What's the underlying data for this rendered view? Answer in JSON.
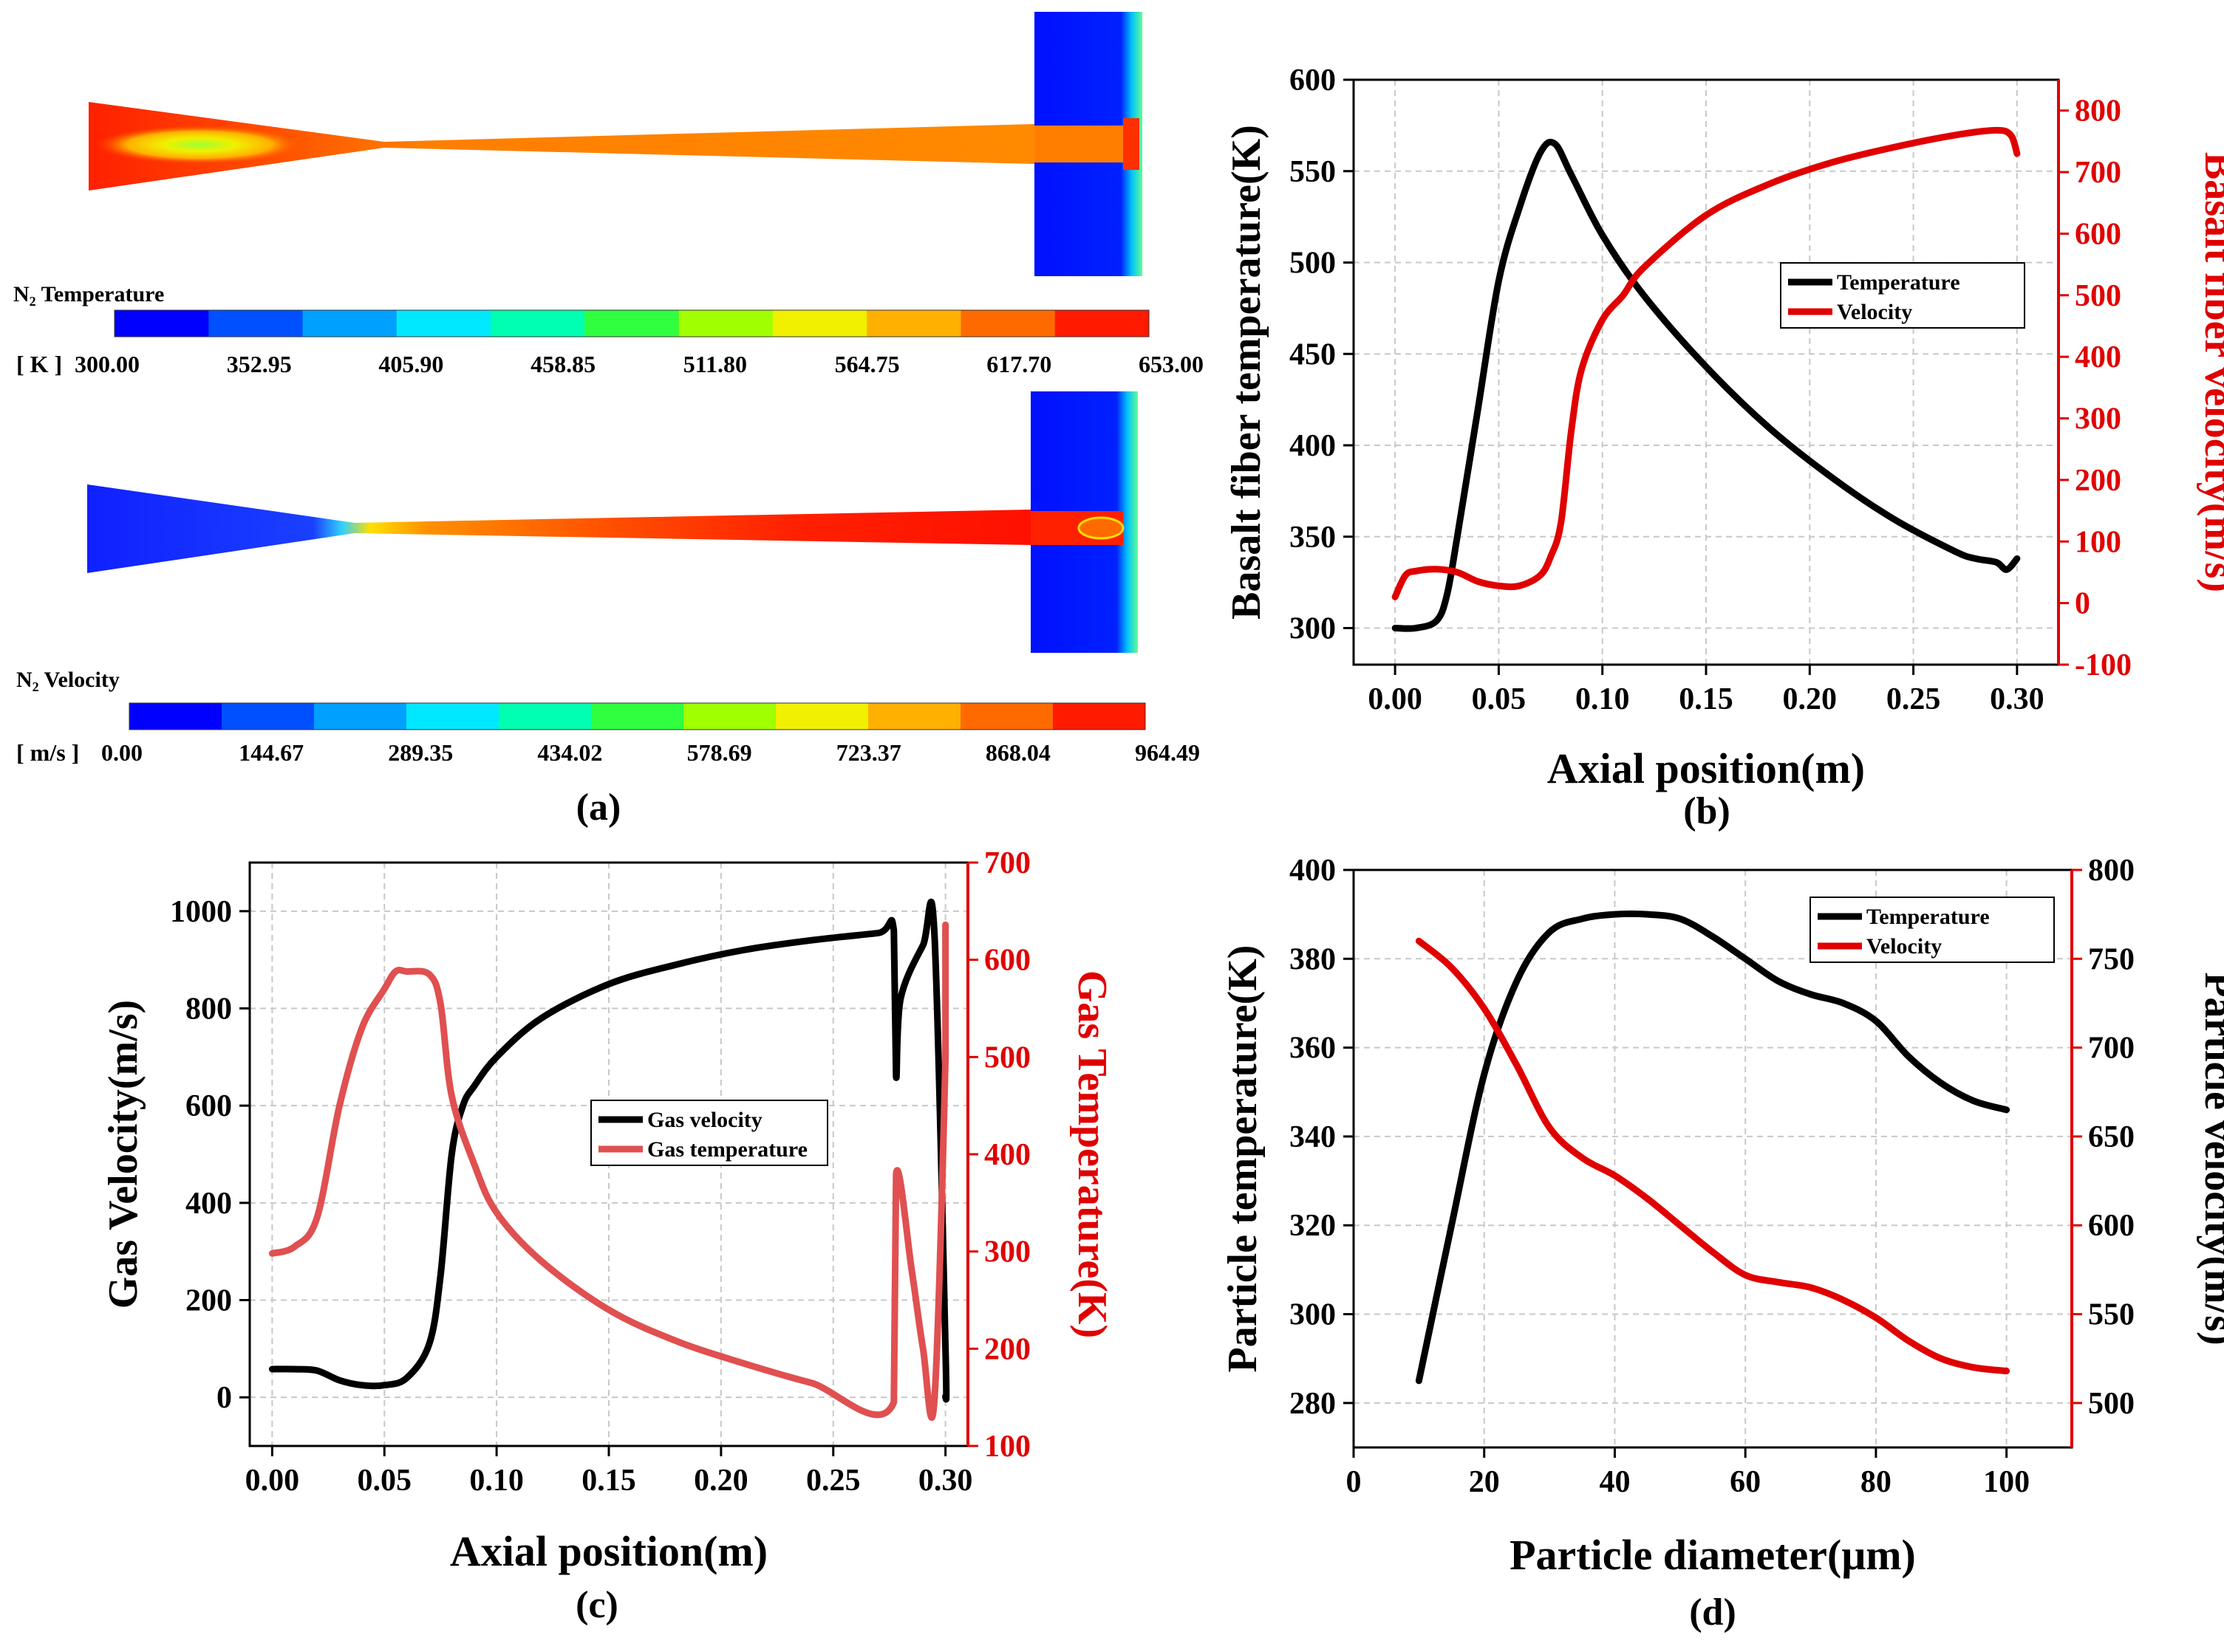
{
  "panel_a": {
    "label": "(a)",
    "temperature": {
      "title": "N₂ Temperature",
      "unit": "[ K ]",
      "ticks": [
        "300.00",
        "352.95",
        "405.90",
        "458.85",
        "511.80",
        "564.75",
        "617.70",
        "653.00"
      ]
    },
    "velocity": {
      "title": "N₂ Velocity",
      "unit": "[ m/s ]",
      "ticks": [
        "0.00",
        "144.67",
        "289.35",
        "434.02",
        "578.69",
        "723.37",
        "868.04",
        "964.49"
      ]
    },
    "colormap": [
      "#0000ff",
      "#0050ff",
      "#00a0ff",
      "#00e8ff",
      "#00ffb0",
      "#30ff40",
      "#a0ff00",
      "#f0f000",
      "#ffb000",
      "#ff6a00",
      "#ff1a00"
    ]
  },
  "chart_data": [
    {
      "id": "b",
      "label": "(b)",
      "type": "line",
      "xlabel": "Axial position(m)",
      "ylabel_left": "Basalt fiber temperature(K)",
      "ylabel_right": "Basalt fiber velocity(m/s)",
      "xlim": [
        -0.02,
        0.32
      ],
      "ylim_left": [
        280,
        600
      ],
      "ylim_right": [
        -100,
        850
      ],
      "xticks": [
        "0.00",
        "0.05",
        "0.10",
        "0.15",
        "0.20",
        "0.25",
        "0.30"
      ],
      "yticks_left": [
        "300",
        "350",
        "400",
        "450",
        "500",
        "550",
        "600"
      ],
      "yticks_right": [
        "-100",
        "0",
        "100",
        "200",
        "300",
        "400",
        "500",
        "600",
        "700",
        "800"
      ],
      "legend": [
        "Temperature",
        "Velocity"
      ],
      "series": [
        {
          "name": "Temperature",
          "axis": "left",
          "color": "#000000",
          "x": [
            0.0,
            0.01,
            0.02,
            0.025,
            0.03,
            0.04,
            0.05,
            0.06,
            0.07,
            0.077,
            0.085,
            0.1,
            0.12,
            0.15,
            0.18,
            0.21,
            0.24,
            0.27,
            0.28,
            0.29,
            0.295,
            0.3
          ],
          "y": [
            300,
            300,
            304,
            318,
            350,
            420,
            490,
            530,
            560,
            565,
            548,
            515,
            482,
            443,
            410,
            383,
            360,
            342,
            338,
            336,
            332,
            338
          ]
        },
        {
          "name": "Velocity",
          "axis": "right",
          "color": "#e00000",
          "x": [
            0.0,
            0.005,
            0.01,
            0.02,
            0.03,
            0.04,
            0.05,
            0.06,
            0.07,
            0.075,
            0.08,
            0.085,
            0.09,
            0.1,
            0.11,
            0.12,
            0.15,
            0.18,
            0.21,
            0.24,
            0.27,
            0.29,
            0.297,
            0.3
          ],
          "y": [
            10,
            45,
            52,
            55,
            50,
            35,
            28,
            28,
            45,
            75,
            130,
            280,
            380,
            460,
            500,
            545,
            630,
            680,
            715,
            740,
            760,
            768,
            760,
            730
          ]
        }
      ]
    },
    {
      "id": "c",
      "label": "(c)",
      "type": "line",
      "xlabel": "Axial position(m)",
      "ylabel_left": "Gas Velocity(m/s)",
      "ylabel_right": "Gas Temperature(K)",
      "xlim": [
        -0.01,
        0.31
      ],
      "ylim_left": [
        -100,
        1100
      ],
      "ylim_right": [
        100,
        700
      ],
      "xticks": [
        "0.00",
        "0.05",
        "0.10",
        "0.15",
        "0.20",
        "0.25",
        "0.30"
      ],
      "yticks_left": [
        "0",
        "200",
        "400",
        "600",
        "800",
        "1000"
      ],
      "yticks_right": [
        "100",
        "200",
        "300",
        "400",
        "500",
        "600",
        "700"
      ],
      "legend": [
        "Gas velocity",
        "Gas temperature"
      ],
      "series": [
        {
          "name": "Gas velocity",
          "axis": "left",
          "color": "#000000",
          "x": [
            0.0,
            0.01,
            0.02,
            0.03,
            0.04,
            0.05,
            0.06,
            0.07,
            0.075,
            0.08,
            0.085,
            0.09,
            0.1,
            0.12,
            0.15,
            0.18,
            0.21,
            0.24,
            0.27,
            0.277,
            0.278,
            0.28,
            0.29,
            0.295,
            0.3,
            0.3
          ],
          "y": [
            58,
            58,
            55,
            35,
            25,
            25,
            40,
            110,
            250,
            500,
            600,
            640,
            700,
            780,
            850,
            890,
            920,
            940,
            955,
            960,
            660,
            820,
            930,
            960,
            100,
            0
          ]
        },
        {
          "name": "Gas temperature",
          "axis": "right",
          "color": "#e05050",
          "x": [
            0.0,
            0.01,
            0.02,
            0.03,
            0.04,
            0.05,
            0.055,
            0.06,
            0.07,
            0.075,
            0.08,
            0.09,
            0.1,
            0.12,
            0.15,
            0.18,
            0.21,
            0.24,
            0.277,
            0.278,
            0.285,
            0.29,
            0.295,
            0.3,
            0.3
          ],
          "y": [
            298,
            305,
            335,
            450,
            530,
            570,
            588,
            588,
            585,
            555,
            460,
            390,
            340,
            290,
            240,
            208,
            185,
            165,
            145,
            380,
            280,
            200,
            145,
            500,
            636
          ]
        }
      ]
    },
    {
      "id": "d",
      "label": "(d)",
      "type": "line",
      "xlabel": "Particle diameter(μm)",
      "ylabel_left": "Particle temperature(K)",
      "ylabel_right": "Particle velocity(m/s)",
      "xlim": [
        0,
        110
      ],
      "ylim_left": [
        270,
        400
      ],
      "ylim_right": [
        475,
        800
      ],
      "xticks": [
        "0",
        "20",
        "40",
        "60",
        "80",
        "100"
      ],
      "yticks_left": [
        "280",
        "300",
        "320",
        "340",
        "360",
        "380",
        "400"
      ],
      "yticks_right": [
        "500",
        "550",
        "600",
        "650",
        "700",
        "750",
        "800"
      ],
      "legend": [
        "Temperature",
        "Velocity"
      ],
      "series": [
        {
          "name": "Temperature",
          "axis": "left",
          "color": "#000000",
          "x": [
            10,
            15,
            20,
            25,
            30,
            35,
            40,
            45,
            50,
            55,
            60,
            65,
            70,
            75,
            80,
            85,
            90,
            95,
            100
          ],
          "y": [
            285,
            320,
            354,
            375,
            386,
            389,
            390,
            390,
            389,
            385,
            380,
            375,
            372,
            370,
            366,
            358,
            352,
            348,
            346
          ]
        },
        {
          "name": "Velocity",
          "axis": "right",
          "color": "#e00000",
          "x": [
            10,
            15,
            20,
            25,
            30,
            35,
            40,
            45,
            50,
            55,
            60,
            65,
            70,
            75,
            80,
            85,
            90,
            95,
            100
          ],
          "y": [
            760,
            745,
            722,
            690,
            655,
            638,
            628,
            615,
            600,
            585,
            572,
            568,
            565,
            558,
            548,
            535,
            525,
            520,
            518
          ]
        }
      ]
    }
  ]
}
